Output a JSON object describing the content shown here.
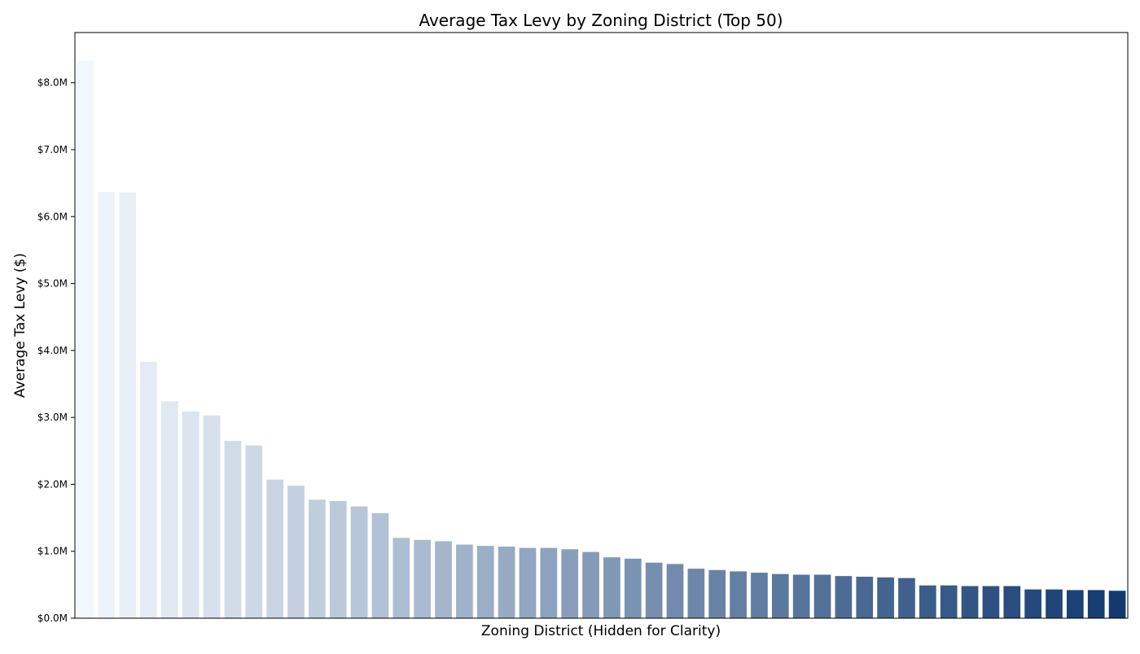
{
  "chart_data": {
    "type": "bar",
    "title": "Average Tax Levy by Zoning District (Top 50)",
    "xlabel": "Zoning District (Hidden for Clarity)",
    "ylabel": "Average Tax Levy ($)",
    "ylim": [
      0,
      8.75
    ],
    "value_unit": "millions of dollars",
    "yticks": [
      0,
      1,
      2,
      3,
      4,
      5,
      6,
      7,
      8
    ],
    "ytick_labels": [
      "$0.0M",
      "$1.0M",
      "$2.0M",
      "$3.0M",
      "$4.0M",
      "$5.0M",
      "$6.0M",
      "$7.0M",
      "$8.0M"
    ],
    "grid": false,
    "legend": "none",
    "colormap": "Blues",
    "color_start": "#f2f7fd",
    "color_end": "#123a70",
    "values": [
      8.33,
      6.37,
      6.36,
      3.83,
      3.24,
      3.09,
      3.03,
      2.65,
      2.58,
      2.07,
      1.98,
      1.77,
      1.75,
      1.67,
      1.57,
      1.2,
      1.17,
      1.15,
      1.1,
      1.08,
      1.07,
      1.05,
      1.05,
      1.03,
      0.99,
      0.91,
      0.89,
      0.83,
      0.81,
      0.74,
      0.72,
      0.7,
      0.68,
      0.66,
      0.65,
      0.65,
      0.63,
      0.62,
      0.61,
      0.6,
      0.49,
      0.49,
      0.48,
      0.48,
      0.48,
      0.43,
      0.43,
      0.42,
      0.42,
      0.41
    ]
  }
}
